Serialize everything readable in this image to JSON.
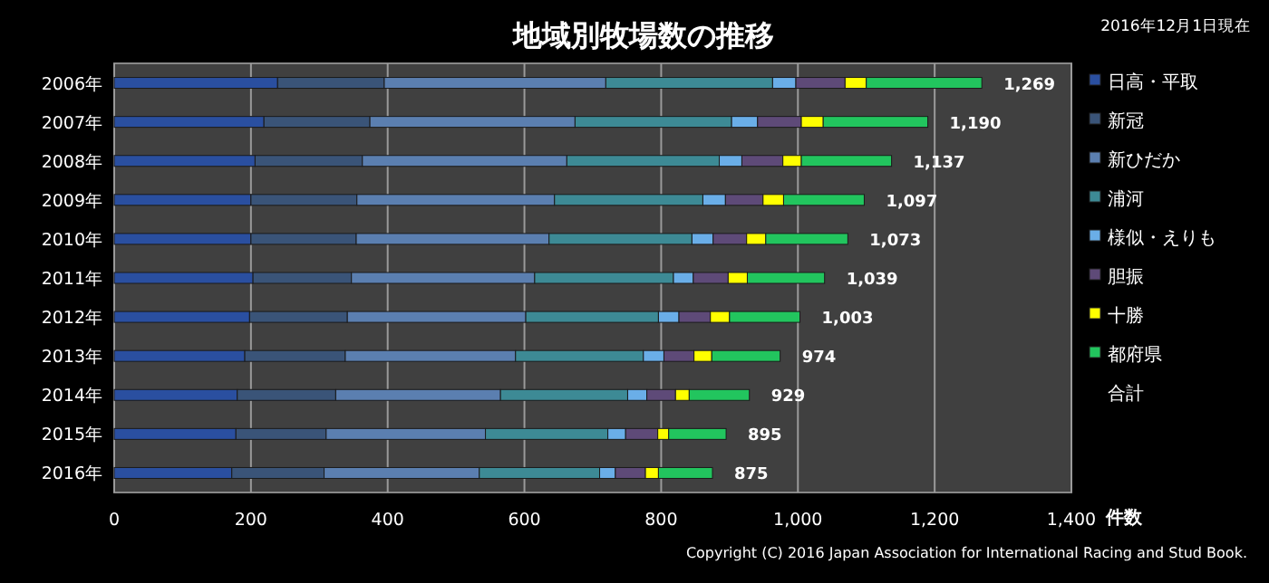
{
  "chart_data": {
    "type": "bar",
    "orientation": "horizontal",
    "stacked": true,
    "title": "地域別牧場数の推移",
    "subtitle": "2016年12月1日現在",
    "xlabel": "件数",
    "categories": [
      "2006年",
      "2007年",
      "2008年",
      "2009年",
      "2010年",
      "2011年",
      "2012年",
      "2013年",
      "2014年",
      "2015年",
      "2016年"
    ],
    "series": [
      {
        "name": "日高・平取",
        "color": "#2a4fa0",
        "values": [
          239,
          219,
          206,
          200,
          200,
          203,
          198,
          191,
          180,
          178,
          172
        ]
      },
      {
        "name": "新冠",
        "color": "#3a5478",
        "values": [
          156,
          155,
          157,
          155,
          154,
          144,
          143,
          147,
          144,
          132,
          135
        ]
      },
      {
        "name": "新ひだか",
        "color": "#5b7fb0",
        "values": [
          324,
          300,
          299,
          289,
          282,
          268,
          261,
          249,
          241,
          233,
          227
        ]
      },
      {
        "name": "浦河",
        "color": "#3d8a95",
        "values": [
          244,
          229,
          223,
          217,
          209,
          203,
          194,
          187,
          186,
          179,
          176
        ]
      },
      {
        "name": "様似・えりも",
        "color": "#6aaee8",
        "values": [
          34,
          38,
          33,
          33,
          31,
          29,
          30,
          30,
          28,
          26,
          23
        ]
      },
      {
        "name": "胆振",
        "color": "#5e4a78",
        "values": [
          72,
          64,
          60,
          55,
          49,
          51,
          46,
          44,
          42,
          47,
          44
        ]
      },
      {
        "name": "十勝",
        "color": "#ffff00",
        "values": [
          31,
          32,
          27,
          30,
          28,
          28,
          28,
          26,
          20,
          16,
          19
        ]
      },
      {
        "name": "都府県",
        "color": "#22c55e",
        "values": [
          169,
          153,
          132,
          118,
          120,
          113,
          103,
          100,
          88,
          84,
          79
        ]
      }
    ],
    "totals": [
      "1,269",
      "1,190",
      "1,137",
      "1,097",
      "1,073",
      "1,039",
      "1,003",
      "974",
      "929",
      "895",
      "875"
    ],
    "xlim": [
      0,
      1400
    ],
    "xticks": [
      0,
      {
        "value": 200,
        "label": "200"
      },
      {
        "value": 400,
        "label": "400"
      },
      {
        "value": 600,
        "label": "600"
      },
      {
        "value": 800,
        "label": "800"
      },
      {
        "value": 1000,
        "label": "1,000"
      },
      {
        "value": 1200,
        "label": "1,200"
      },
      {
        "value": 1400,
        "label": "1,400"
      }
    ],
    "grid": "x",
    "legend": "right",
    "annotations": [
      "合計",
      "Copyright (C) 2016 Japan Association for International Racing and Stud Book."
    ]
  }
}
